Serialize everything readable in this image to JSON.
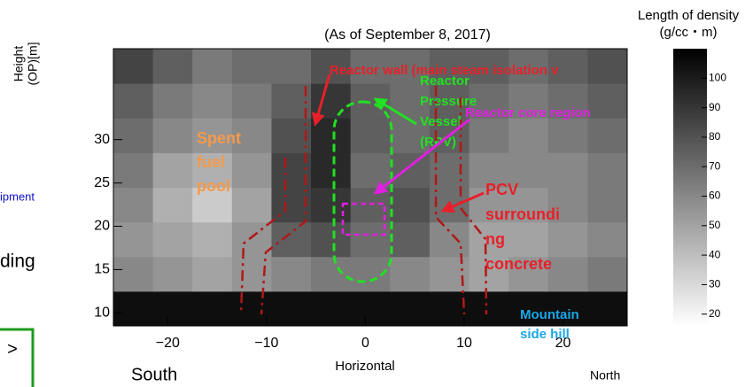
{
  "chart_data": {
    "type": "heatmap",
    "title": "(As of September  8, 2017)",
    "x_label": "Horizontal",
    "y_label": [
      "Height",
      "(OP)[m]"
    ],
    "colorbar_label": [
      "Length of density",
      "(g/cc・m)"
    ],
    "xlim": [
      -25.5,
      26.5
    ],
    "ylim": [
      8.5,
      40.5
    ],
    "xticks": [
      {
        "value": -20,
        "label": "−20"
      },
      {
        "value": -10,
        "label": "−10"
      },
      0,
      10,
      20
    ],
    "yticks": [
      10,
      15,
      20,
      25,
      30
    ],
    "clim": [
      16,
      110
    ],
    "cticks": [
      20,
      30,
      40,
      50,
      60,
      70,
      80,
      90,
      100
    ],
    "x_bins": [
      -25.5,
      -21.5,
      -17.5,
      -13.5,
      -9.5,
      -5.5,
      -1.5,
      2.5,
      6.5,
      10.5,
      14.5,
      18.5,
      22.5,
      26.5
    ],
    "y_bins": [
      8.5,
      12.5,
      16.5,
      20.5,
      24.5,
      28.5,
      32.5,
      36.5,
      40.5
    ],
    "z": [
      [
        105,
        105,
        105,
        105,
        105,
        105,
        105,
        105,
        105,
        105,
        105,
        105,
        105
      ],
      [
        60,
        55,
        50,
        55,
        60,
        65,
        65,
        60,
        55,
        50,
        55,
        60,
        65
      ],
      [
        55,
        50,
        45,
        55,
        75,
        80,
        70,
        75,
        60,
        50,
        50,
        55,
        60
      ],
      [
        60,
        45,
        35,
        50,
        85,
        90,
        75,
        80,
        70,
        55,
        55,
        60,
        65
      ],
      [
        65,
        50,
        45,
        55,
        85,
        95,
        70,
        75,
        70,
        60,
        60,
        60,
        65
      ],
      [
        70,
        60,
        55,
        60,
        80,
        95,
        75,
        70,
        75,
        65,
        60,
        65,
        70
      ],
      [
        75,
        65,
        60,
        65,
        75,
        90,
        75,
        70,
        75,
        70,
        65,
        70,
        75
      ],
      [
        85,
        75,
        65,
        70,
        70,
        80,
        70,
        70,
        75,
        75,
        70,
        75,
        80
      ]
    ],
    "annotations": [
      {
        "lines": [
          "Reactor wall (main steam isolation v"
        ],
        "color": "#e8202a"
      },
      {
        "lines": [
          "Reactor",
          "Pressure",
          "Vessel",
          "(RPV)"
        ],
        "color": "#22e022"
      },
      {
        "lines": [
          "Reactor core region"
        ],
        "color": "#e020e0"
      },
      {
        "lines": [
          "Spent",
          "fuel",
          "pool"
        ],
        "color": "#f59a4a"
      },
      {
        "lines": [
          "PCV",
          "surroundi",
          "ng",
          "concrete"
        ],
        "color": "#e8202a"
      },
      {
        "lines": [
          "Mountain",
          "side hill"
        ],
        "color": "#1aa7e8"
      }
    ],
    "side_texts": {
      "left_top": "ipment",
      "left_mid": "ding",
      "left_box": ">",
      "south": "South",
      "north": "North"
    }
  }
}
